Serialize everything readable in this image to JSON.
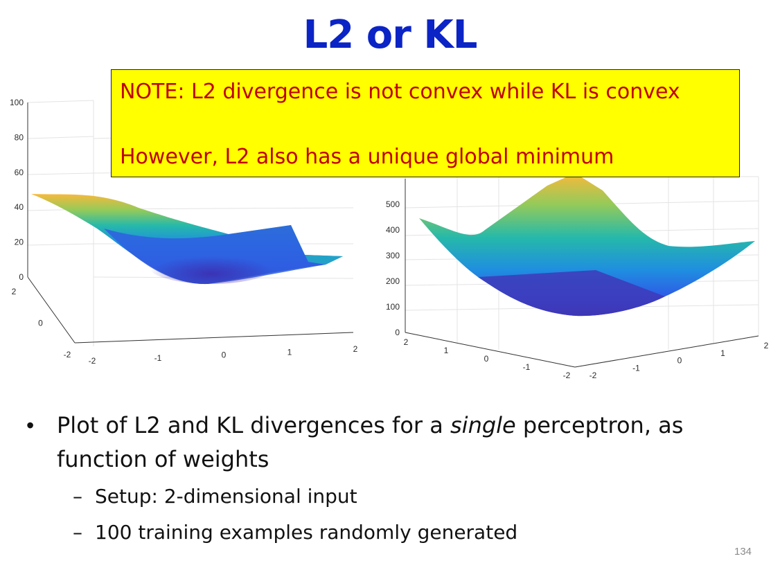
{
  "slide": {
    "title": "L2 or KL",
    "note": {
      "line1": "NOTE:  L2 divergence is not convex while KL is convex",
      "line2": "However, L2 also has a unique global minimum"
    },
    "bullet": {
      "before": "Plot of L2 and KL divergences for a ",
      "emph": "single",
      "after": " perceptron, as function of weights"
    },
    "sub_bullets": [
      "Setup:  2-dimensional input",
      "100 training examples randomly generated"
    ],
    "page_number": "134"
  },
  "chart_data": [
    {
      "type": "surface",
      "title": "",
      "xlabel": "",
      "ylabel": "",
      "zlabel": "",
      "x_range": [
        -2,
        2
      ],
      "y_range": [
        -2,
        2
      ],
      "z_range": [
        0,
        100
      ],
      "x_ticks": [
        "-2",
        "-1",
        "0",
        "1",
        "2"
      ],
      "y_ticks": [
        "-2",
        "0",
        "2"
      ],
      "z_ticks": [
        "0",
        "20",
        "40",
        "60",
        "80",
        "100"
      ],
      "grid": true,
      "colormap": [
        "#3e26a8",
        "#2f64f5",
        "#1f9ad3",
        "#26b9aa",
        "#94ca5a",
        "#f8b93b"
      ]
    },
    {
      "type": "surface",
      "title": "",
      "xlabel": "",
      "ylabel": "",
      "zlabel": "",
      "x_range": [
        -2,
        2
      ],
      "y_range": [
        -2,
        2
      ],
      "z_range": [
        0,
        600
      ],
      "x_ticks": [
        "-2",
        "-1",
        "0",
        "1",
        "2"
      ],
      "y_ticks": [
        "-2",
        "-1",
        "0",
        "1",
        "2"
      ],
      "z_ticks": [
        "0",
        "100",
        "200",
        "300",
        "400",
        "500"
      ],
      "grid": true,
      "colormap": [
        "#3e26a8",
        "#2f64f5",
        "#1f9ad3",
        "#26b9aa",
        "#94ca5a",
        "#f8b93b"
      ]
    }
  ]
}
